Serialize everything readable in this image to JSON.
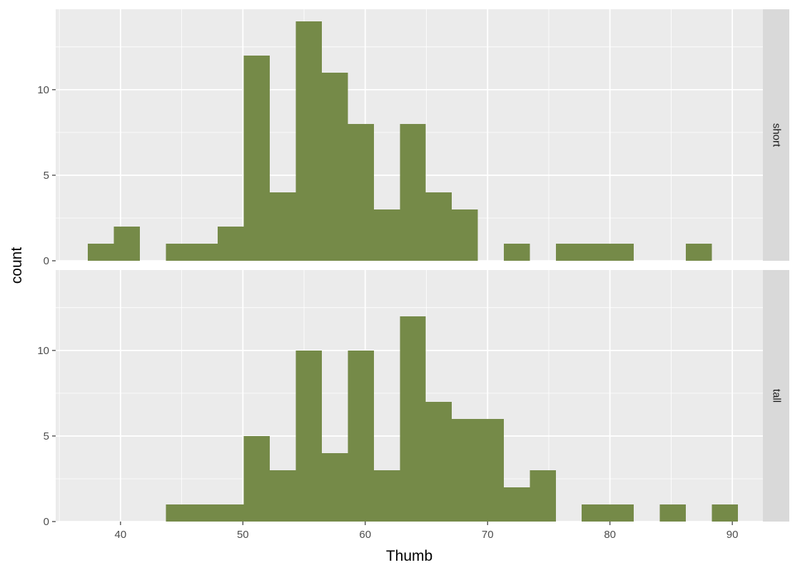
{
  "colors": {
    "panel_background": "#ebebeb",
    "grid_major": "#ffffff",
    "strip_background": "#d9d9d9",
    "bar_fill": "#758a48"
  },
  "chart_data": {
    "type": "bar",
    "subtype": "histogram-facet",
    "xlabel": "Thumb",
    "ylabel": "count",
    "xlim": [
      34.7,
      92.5
    ],
    "ylim": [
      0,
      14.7
    ],
    "x_ticks": [
      40,
      50,
      60,
      70,
      80,
      90
    ],
    "y_ticks": [
      0,
      5,
      10
    ],
    "bin_width": 2.125,
    "grid": true,
    "legend": "none",
    "facets": [
      {
        "label": "short",
        "bins": [
          {
            "x0": 37.33,
            "x1": 39.45,
            "count": 1
          },
          {
            "x0": 39.45,
            "x1": 41.58,
            "count": 2
          },
          {
            "x0": 43.7,
            "x1": 45.83,
            "count": 1
          },
          {
            "x0": 45.83,
            "x1": 47.95,
            "count": 1
          },
          {
            "x0": 47.95,
            "x1": 50.08,
            "count": 2
          },
          {
            "x0": 50.08,
            "x1": 52.2,
            "count": 12
          },
          {
            "x0": 52.2,
            "x1": 54.33,
            "count": 4
          },
          {
            "x0": 54.33,
            "x1": 56.45,
            "count": 14
          },
          {
            "x0": 56.45,
            "x1": 58.58,
            "count": 11
          },
          {
            "x0": 58.58,
            "x1": 60.7,
            "count": 8
          },
          {
            "x0": 60.7,
            "x1": 62.83,
            "count": 3
          },
          {
            "x0": 62.83,
            "x1": 64.95,
            "count": 8
          },
          {
            "x0": 64.95,
            "x1": 67.08,
            "count": 4
          },
          {
            "x0": 67.08,
            "x1": 69.2,
            "count": 3
          },
          {
            "x0": 71.33,
            "x1": 73.45,
            "count": 1
          },
          {
            "x0": 75.58,
            "x1": 77.7,
            "count": 1
          },
          {
            "x0": 77.7,
            "x1": 79.83,
            "count": 1
          },
          {
            "x0": 79.83,
            "x1": 81.95,
            "count": 1
          },
          {
            "x0": 86.2,
            "x1": 88.33,
            "count": 1
          }
        ]
      },
      {
        "label": "tall",
        "bins": [
          {
            "x0": 43.7,
            "x1": 45.83,
            "count": 1
          },
          {
            "x0": 45.83,
            "x1": 47.95,
            "count": 1
          },
          {
            "x0": 47.95,
            "x1": 50.08,
            "count": 1
          },
          {
            "x0": 50.08,
            "x1": 52.2,
            "count": 5
          },
          {
            "x0": 52.2,
            "x1": 54.33,
            "count": 3
          },
          {
            "x0": 54.33,
            "x1": 56.45,
            "count": 10
          },
          {
            "x0": 56.45,
            "x1": 58.58,
            "count": 4
          },
          {
            "x0": 58.58,
            "x1": 60.7,
            "count": 10
          },
          {
            "x0": 60.7,
            "x1": 62.83,
            "count": 3
          },
          {
            "x0": 62.83,
            "x1": 64.95,
            "count": 12
          },
          {
            "x0": 64.95,
            "x1": 67.08,
            "count": 7
          },
          {
            "x0": 67.08,
            "x1": 69.2,
            "count": 6
          },
          {
            "x0": 69.2,
            "x1": 71.33,
            "count": 6
          },
          {
            "x0": 71.33,
            "x1": 73.45,
            "count": 2
          },
          {
            "x0": 73.45,
            "x1": 75.58,
            "count": 3
          },
          {
            "x0": 77.7,
            "x1": 79.83,
            "count": 1
          },
          {
            "x0": 79.83,
            "x1": 81.95,
            "count": 1
          },
          {
            "x0": 84.08,
            "x1": 86.2,
            "count": 1
          },
          {
            "x0": 88.33,
            "x1": 90.45,
            "count": 1
          }
        ]
      }
    ]
  }
}
